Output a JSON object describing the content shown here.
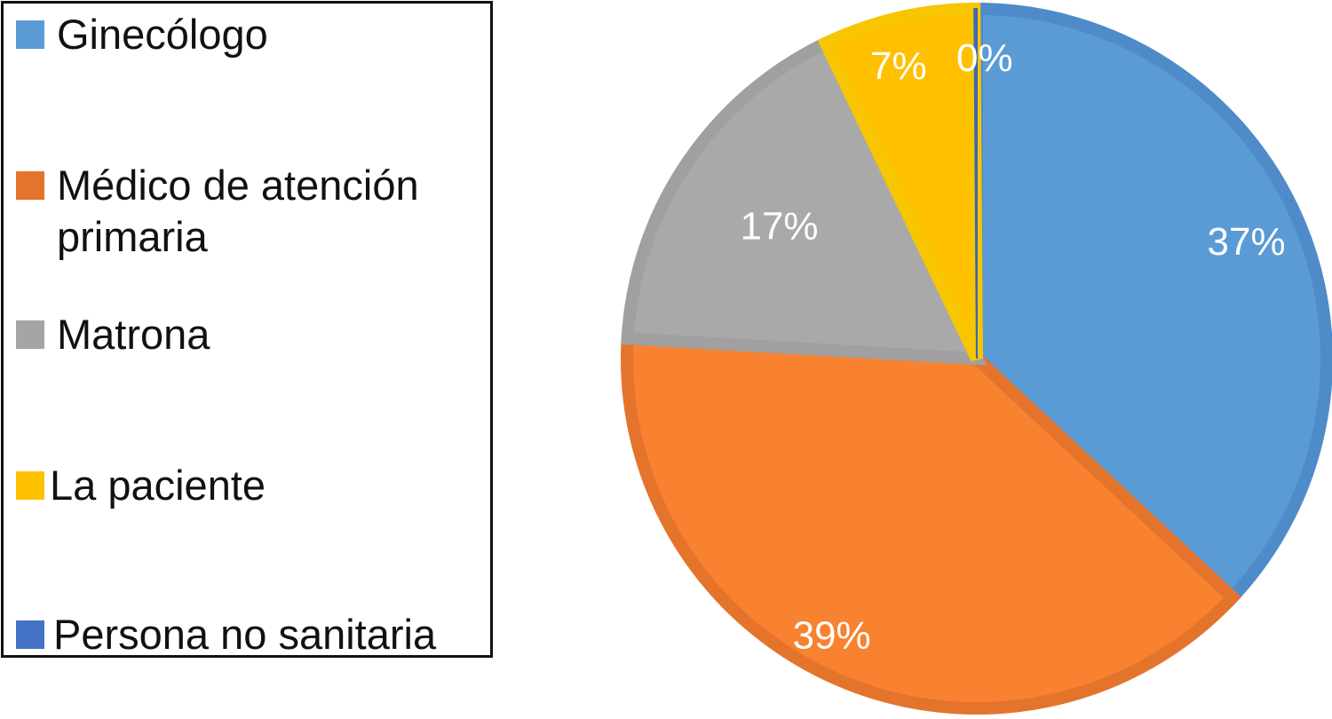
{
  "chart_data": {
    "type": "pie",
    "title": "",
    "categories": [
      "Ginecólogo",
      "Médico de atención primaria",
      "Matrona",
      "La paciente",
      "Persona no sanitaria"
    ],
    "values": [
      37,
      39,
      17,
      7,
      0
    ],
    "labels": [
      "37%",
      "39%",
      "17%",
      "7%",
      "0%"
    ],
    "colors": [
      "#5B9BD5",
      "#F8822F",
      "#A9A9A9",
      "#FFC000",
      "#4472C4"
    ],
    "legend_position": "left"
  }
}
